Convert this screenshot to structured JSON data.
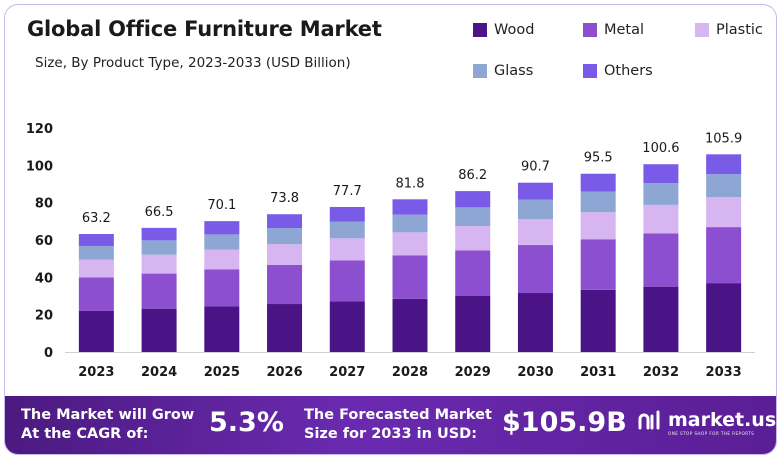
{
  "chart_data": {
    "type": "bar",
    "stacked": true,
    "title": "Global Office Furniture Market",
    "subtitle": "Size, By Product Type, 2023-2033 (USD Billion)",
    "categories": [
      "2023",
      "2024",
      "2025",
      "2026",
      "2027",
      "2028",
      "2029",
      "2030",
      "2031",
      "2032",
      "2033"
    ],
    "totals": [
      "63.2",
      "66.5",
      "70.1",
      "73.8",
      "77.7",
      "81.8",
      "86.2",
      "90.7",
      "95.5",
      "100.6",
      "105.9"
    ],
    "series": [
      {
        "name": "Wood",
        "color": "#4a1486",
        "values": [
          22.0,
          23.2,
          24.4,
          25.7,
          27.1,
          28.5,
          30.0,
          31.6,
          33.3,
          35.0,
          36.9
        ]
      },
      {
        "name": "Metal",
        "color": "#8c4fd0",
        "values": [
          17.9,
          18.8,
          19.9,
          20.9,
          22.0,
          23.2,
          24.4,
          25.7,
          27.1,
          28.5,
          30.0
        ]
      },
      {
        "name": "Plastic",
        "color": "#d6b5f0",
        "values": [
          9.6,
          10.1,
          10.6,
          11.2,
          11.8,
          12.4,
          13.1,
          13.8,
          14.5,
          15.3,
          16.1
        ]
      },
      {
        "name": "Glass",
        "color": "#8ea6d4",
        "values": [
          7.3,
          7.7,
          8.1,
          8.6,
          9.0,
          9.5,
          10.0,
          10.5,
          11.1,
          11.7,
          12.3
        ]
      },
      {
        "name": "Others",
        "color": "#7a5be8",
        "values": [
          6.4,
          6.7,
          7.1,
          7.4,
          7.8,
          8.2,
          8.7,
          9.1,
          9.5,
          10.1,
          10.6
        ]
      }
    ],
    "yticks": [
      "0",
      "20",
      "40",
      "60",
      "80",
      "100",
      "120"
    ],
    "ylim": [
      0,
      120
    ],
    "grid": false,
    "legend": "top-right"
  },
  "footer": {
    "cagr_label_1": "The Market will Grow",
    "cagr_label_2": "At the CAGR of:",
    "cagr_value": "5.3%",
    "forecast_label_1": "The Forecasted Market",
    "forecast_label_2": "Size for 2033 in USD:",
    "forecast_value": "$105.9B",
    "brand_name": "market.us",
    "brand_tagline": "ONE STOP SHOP FOR THE REPORTS"
  }
}
